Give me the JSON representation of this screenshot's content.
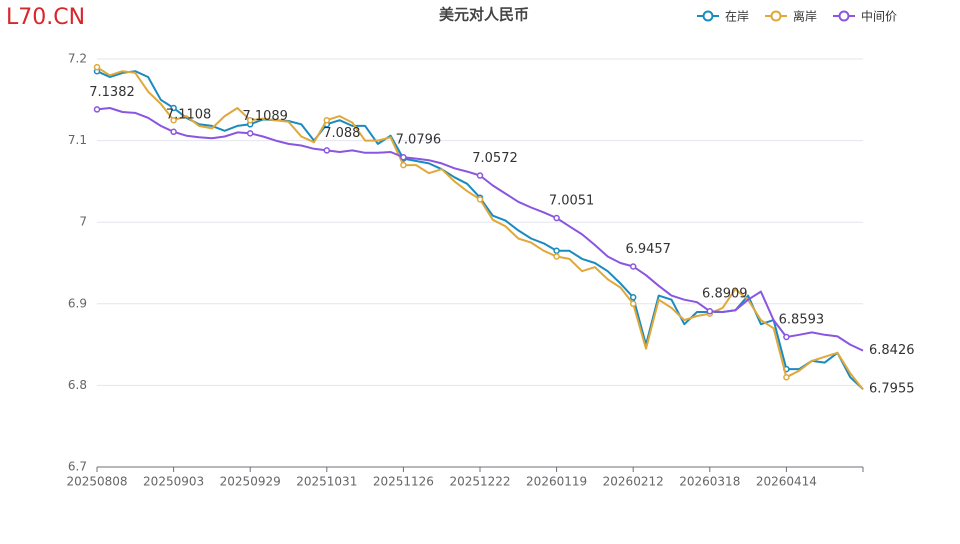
{
  "brand": "L70.CN",
  "chart_data": {
    "type": "line",
    "title": "美元对人民币",
    "categories": [
      "20250808",
      null,
      null,
      null,
      null,
      null,
      "20250903",
      null,
      null,
      null,
      null,
      null,
      "20250929",
      null,
      null,
      null,
      null,
      null,
      "20251031",
      null,
      null,
      null,
      null,
      null,
      "20251126",
      null,
      null,
      null,
      null,
      null,
      "20251222",
      null,
      null,
      null,
      null,
      null,
      "20260119",
      null,
      null,
      null,
      null,
      null,
      "20260212",
      null,
      null,
      null,
      null,
      null,
      "20260318",
      null,
      null,
      null,
      null,
      null,
      "20260414",
      null,
      null,
      null,
      null,
      null,
      null
    ],
    "series": [
      {
        "name": "在岸",
        "color": "#1a8bbf",
        "values": [
          7.185,
          7.178,
          7.183,
          7.185,
          7.178,
          7.15,
          7.14,
          7.128,
          7.12,
          7.118,
          7.112,
          7.118,
          7.12,
          7.126,
          7.125,
          7.124,
          7.12,
          7.1,
          7.12,
          7.125,
          7.118,
          7.118,
          7.096,
          7.106,
          7.078,
          7.075,
          7.072,
          7.065,
          7.055,
          7.047,
          7.03,
          7.008,
          7.002,
          6.99,
          6.98,
          6.974,
          6.965,
          6.965,
          6.955,
          6.95,
          6.94,
          6.925,
          6.908,
          6.85,
          6.91,
          6.905,
          6.875,
          6.89,
          6.89,
          6.89,
          6.892,
          6.91,
          6.875,
          6.88,
          6.82,
          6.82,
          6.83,
          6.828,
          6.84,
          6.81,
          6.7955
        ],
        "value_labels": [
          null,
          null,
          null,
          null,
          null,
          null,
          null,
          null,
          null,
          null,
          null,
          null,
          null,
          null,
          null,
          null,
          null,
          null,
          null,
          null,
          null,
          null,
          null,
          null,
          null,
          null,
          null,
          null,
          null,
          null,
          null,
          null,
          null,
          null,
          null,
          null,
          null,
          null,
          null,
          null,
          null,
          null,
          null,
          null,
          null,
          null,
          null,
          null,
          null,
          null,
          null,
          null,
          null,
          null,
          null,
          null,
          null,
          null,
          null,
          null,
          "6.7955"
        ]
      },
      {
        "name": "离岸",
        "color": "#e0a83a",
        "values": [
          7.19,
          7.18,
          7.185,
          7.183,
          7.16,
          7.145,
          7.125,
          7.13,
          7.118,
          7.115,
          7.13,
          7.14,
          7.125,
          7.127,
          7.125,
          7.123,
          7.105,
          7.098,
          7.125,
          7.13,
          7.122,
          7.1,
          7.1,
          7.104,
          7.07,
          7.07,
          7.06,
          7.065,
          7.05,
          7.038,
          7.028,
          7.003,
          6.995,
          6.98,
          6.975,
          6.965,
          6.958,
          6.955,
          6.94,
          6.945,
          6.93,
          6.92,
          6.9,
          6.845,
          6.905,
          6.895,
          6.88,
          6.885,
          6.888,
          6.895,
          6.918,
          6.905,
          6.88,
          6.87,
          6.81,
          6.818,
          6.83,
          6.835,
          6.84,
          6.815,
          6.795
        ]
      },
      {
        "name": "中间价",
        "color": "#8a55e0",
        "values": [
          7.1382,
          7.14,
          7.135,
          7.134,
          7.128,
          7.118,
          7.1108,
          7.106,
          7.104,
          7.103,
          7.105,
          7.11,
          7.1089,
          7.105,
          7.1,
          7.096,
          7.094,
          7.09,
          7.088,
          7.086,
          7.088,
          7.085,
          7.085,
          7.086,
          7.0796,
          7.078,
          7.076,
          7.072,
          7.066,
          7.062,
          7.0572,
          7.045,
          7.035,
          7.025,
          7.018,
          7.012,
          7.0051,
          6.995,
          6.985,
          6.972,
          6.958,
          6.95,
          6.9457,
          6.935,
          6.922,
          6.91,
          6.905,
          6.902,
          6.8909,
          6.89,
          6.892,
          6.905,
          6.915,
          6.88,
          6.8593,
          6.862,
          6.865,
          6.862,
          6.86,
          6.85,
          6.8426
        ],
        "value_labels": [
          "7.1382",
          null,
          null,
          null,
          null,
          null,
          "7.1108",
          null,
          null,
          null,
          null,
          null,
          "7.1089",
          null,
          null,
          null,
          null,
          null,
          "7.088",
          null,
          null,
          null,
          null,
          null,
          "7.0796",
          null,
          null,
          null,
          null,
          null,
          "7.0572",
          null,
          null,
          null,
          null,
          null,
          "7.0051",
          null,
          null,
          null,
          null,
          null,
          "6.9457",
          null,
          null,
          null,
          null,
          null,
          "6.8909",
          null,
          null,
          null,
          null,
          null,
          "6.8593",
          null,
          null,
          null,
          null,
          null,
          "6.8426"
        ]
      }
    ],
    "ylim": [
      6.7,
      7.2
    ],
    "yticks": [
      6.7,
      6.8,
      6.9,
      7,
      7.1,
      7.2
    ],
    "grid": true,
    "legend": "top-right"
  }
}
